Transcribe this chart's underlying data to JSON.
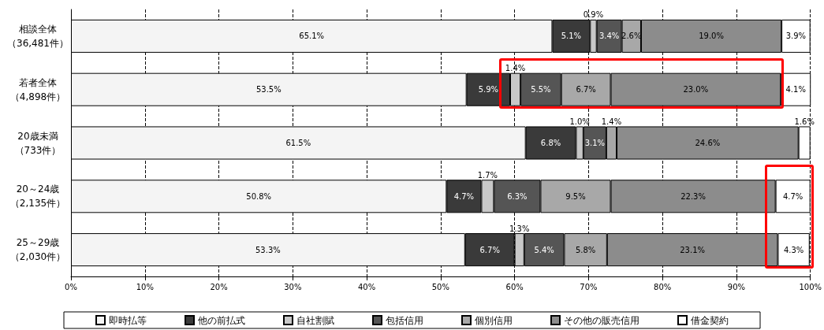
{
  "chart_data": {
    "type": "bar",
    "orientation": "horizontal",
    "stacked": true,
    "grid": "x",
    "legend": "bottom",
    "categories": [
      "相談全体（36,481件）",
      "若者全体（4,898件）",
      "20歳未満（733件）",
      "20～24歳（2,135件）",
      "25～29歳（2,030件）"
    ],
    "xlim": [
      0,
      100
    ],
    "xticks": [
      {
        "value": 0,
        "label": "0%"
      },
      {
        "value": 10,
        "label": "10%"
      },
      {
        "value": 20,
        "label": "20%"
      },
      {
        "value": 30,
        "label": "30%"
      },
      {
        "value": 40,
        "label": "40%"
      },
      {
        "value": 50,
        "label": "50%"
      },
      {
        "value": 60,
        "label": "60%"
      },
      {
        "value": 70,
        "label": "70%"
      },
      {
        "value": 80,
        "label": "80%"
      },
      {
        "value": 90,
        "label": "90%"
      },
      {
        "value": 100,
        "label": "100%"
      }
    ],
    "series": [
      {
        "name": "即時払等",
        "color": "#f4f4f4",
        "values": [
          65.1,
          53.5,
          61.5,
          50.8,
          53.3
        ],
        "value_labels": [
          "65.1%",
          "53.5%",
          "61.5%",
          "50.8%",
          "53.3%"
        ]
      },
      {
        "name": "他の前払式",
        "color": "#3a3a3a",
        "values": [
          5.1,
          5.9,
          6.8,
          4.7,
          6.7
        ],
        "value_labels": [
          "5.1%",
          "5.9%",
          "6.8%",
          "4.7%",
          "6.7%"
        ]
      },
      {
        "name": "自社割賦",
        "color": "#c8c8c8",
        "values": [
          0.9,
          1.4,
          1.0,
          1.7,
          1.3
        ],
        "value_labels": [
          "0.9%",
          "1.4%",
          "1.0%",
          "1.7%",
          "1.3%"
        ]
      },
      {
        "name": "包括信用",
        "color": "#555555",
        "values": [
          3.4,
          5.5,
          3.1,
          6.3,
          5.4
        ],
        "value_labels": [
          "3.4%",
          "5.5%",
          "3.1%",
          "6.3%",
          "5.4%"
        ]
      },
      {
        "name": "個別信用",
        "color": "#a8a8a8",
        "values": [
          2.6,
          6.7,
          1.4,
          9.5,
          5.8
        ],
        "value_labels": [
          "2.6%",
          "6.7%",
          "1.4%",
          "9.5%",
          "5.8%"
        ]
      },
      {
        "name": "その他の販売信用",
        "color": "#8c8c8c",
        "values": [
          19.0,
          23.0,
          24.6,
          22.3,
          23.1
        ],
        "value_labels": [
          "19.0%",
          "23.0%",
          "24.6%",
          "22.3%",
          "23.1%"
        ]
      },
      {
        "name": "借金契約",
        "color": "#ffffff",
        "values": [
          3.9,
          4.1,
          1.6,
          4.7,
          4.3
        ],
        "value_labels": [
          "3.9%",
          "4.1%",
          "1.6%",
          "4.7%",
          "4.3%"
        ]
      }
    ]
  }
}
